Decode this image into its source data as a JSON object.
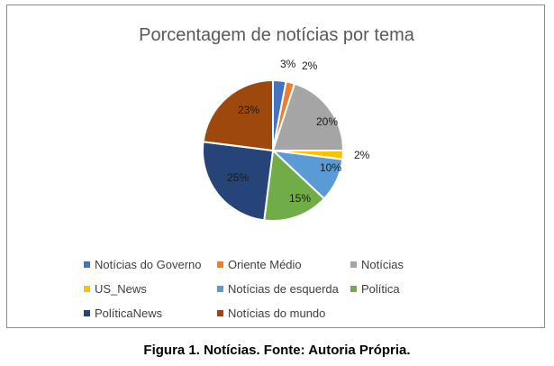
{
  "chart_data": {
    "type": "pie",
    "title": "Porcentagem de notícias por tema",
    "legend_position": "bottom",
    "slices": [
      {
        "label": "Notícias do Governo",
        "value": 3,
        "value_label": "3%",
        "color": "#4472c4"
      },
      {
        "label": "Oriente Médio",
        "value": 2,
        "value_label": "2%",
        "color": "#ed7d31"
      },
      {
        "label": "Notícias",
        "value": 20,
        "value_label": "20%",
        "color": "#a5a5a5"
      },
      {
        "label": "US_News",
        "value": 2,
        "value_label": "2%",
        "color": "#ffc000"
      },
      {
        "label": "Notícias de esquerda",
        "value": 10,
        "value_label": "10%",
        "color": "#5b9bd5"
      },
      {
        "label": "Política",
        "value": 15,
        "value_label": "15%",
        "color": "#70ad47"
      },
      {
        "label": "PolíticaNews",
        "value": 25,
        "value_label": "25%",
        "color": "#264478"
      },
      {
        "label": "Notícias do mundo",
        "value": 23,
        "value_label": "23%",
        "color": "#9e480e"
      }
    ]
  },
  "caption": "Figura 1. Notícias. Fonte: Autoria Própria."
}
